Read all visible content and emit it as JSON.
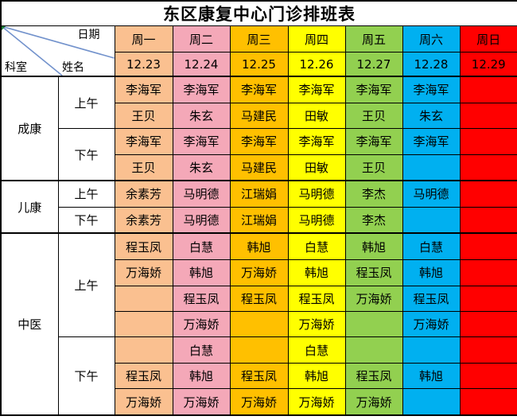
{
  "title": "东区康复中心门诊排班表",
  "corner": {
    "date_label": "日期",
    "dept_label": "科室",
    "name_label": "姓名"
  },
  "columns": [
    {
      "day": "周一",
      "date": "12.23",
      "color": "#FAC090"
    },
    {
      "day": "周二",
      "date": "12.24",
      "color": "#F4A8B8"
    },
    {
      "day": "周三",
      "date": "12.25",
      "color": "#FFC000"
    },
    {
      "day": "周四",
      "date": "12.26",
      "color": "#FFFF00"
    },
    {
      "day": "周五",
      "date": "12.27",
      "color": "#92D050"
    },
    {
      "day": "周六",
      "date": "12.28",
      "color": "#00B0F0"
    },
    {
      "day": "周日",
      "date": "12.29",
      "color": "#FF0000"
    }
  ],
  "sections": [
    {
      "dept": "成康",
      "periods": [
        {
          "label": "上午",
          "rows": [
            [
              "李海军",
              "李海军",
              "李海军",
              "李海军",
              "李海军",
              "李海军",
              ""
            ],
            [
              "王贝",
              "朱玄",
              "马建民",
              "田敏",
              "王贝",
              "朱玄",
              ""
            ]
          ]
        },
        {
          "label": "下午",
          "rows": [
            [
              "李海军",
              "李海军",
              "李海军",
              "李海军",
              "李海军",
              "李海军",
              ""
            ],
            [
              "王贝",
              "朱玄",
              "马建民",
              "田敏",
              "王贝",
              "",
              ""
            ]
          ]
        }
      ]
    },
    {
      "dept": "儿康",
      "periods": [
        {
          "label": "上午",
          "rows": [
            [
              "余素芳",
              "马明德",
              "江瑞娟",
              "马明德",
              "李杰",
              "马明德",
              ""
            ]
          ]
        },
        {
          "label": "下午",
          "rows": [
            [
              "余素芳",
              "马明德",
              "江瑞娟",
              "马明德",
              "李杰",
              "",
              ""
            ]
          ]
        }
      ]
    },
    {
      "dept": "中医",
      "periods": [
        {
          "label": "上午",
          "rows": [
            [
              "程玉凤",
              "白慧",
              "韩旭",
              "白慧",
              "韩旭",
              "白慧",
              ""
            ],
            [
              "万海娇",
              "韩旭",
              "万海娇",
              "韩旭",
              "程玉凤",
              "韩旭",
              ""
            ],
            [
              "",
              "程玉凤",
              "程玉凤",
              "程玉凤",
              "万海娇",
              "程玉凤",
              ""
            ],
            [
              "",
              "万海娇",
              "",
              "万海娇",
              "",
              "万海娇",
              ""
            ]
          ]
        },
        {
          "label": "下午",
          "rows": [
            [
              "",
              "白慧",
              "",
              "白慧",
              "",
              "",
              ""
            ],
            [
              "程玉凤",
              "韩旭",
              "程玉凤",
              "韩旭",
              "程玉凤",
              "韩旭",
              ""
            ],
            [
              "万海娇",
              "万海娇",
              "万海娇",
              "万海娇",
              "万海娇",
              "",
              ""
            ]
          ]
        }
      ]
    }
  ],
  "colors": {
    "border": "#000000",
    "diagonal_line": "#7292CC",
    "cell_marker_green": "#1E7E34",
    "text": "#000000",
    "background": "#FFFFFF"
  }
}
